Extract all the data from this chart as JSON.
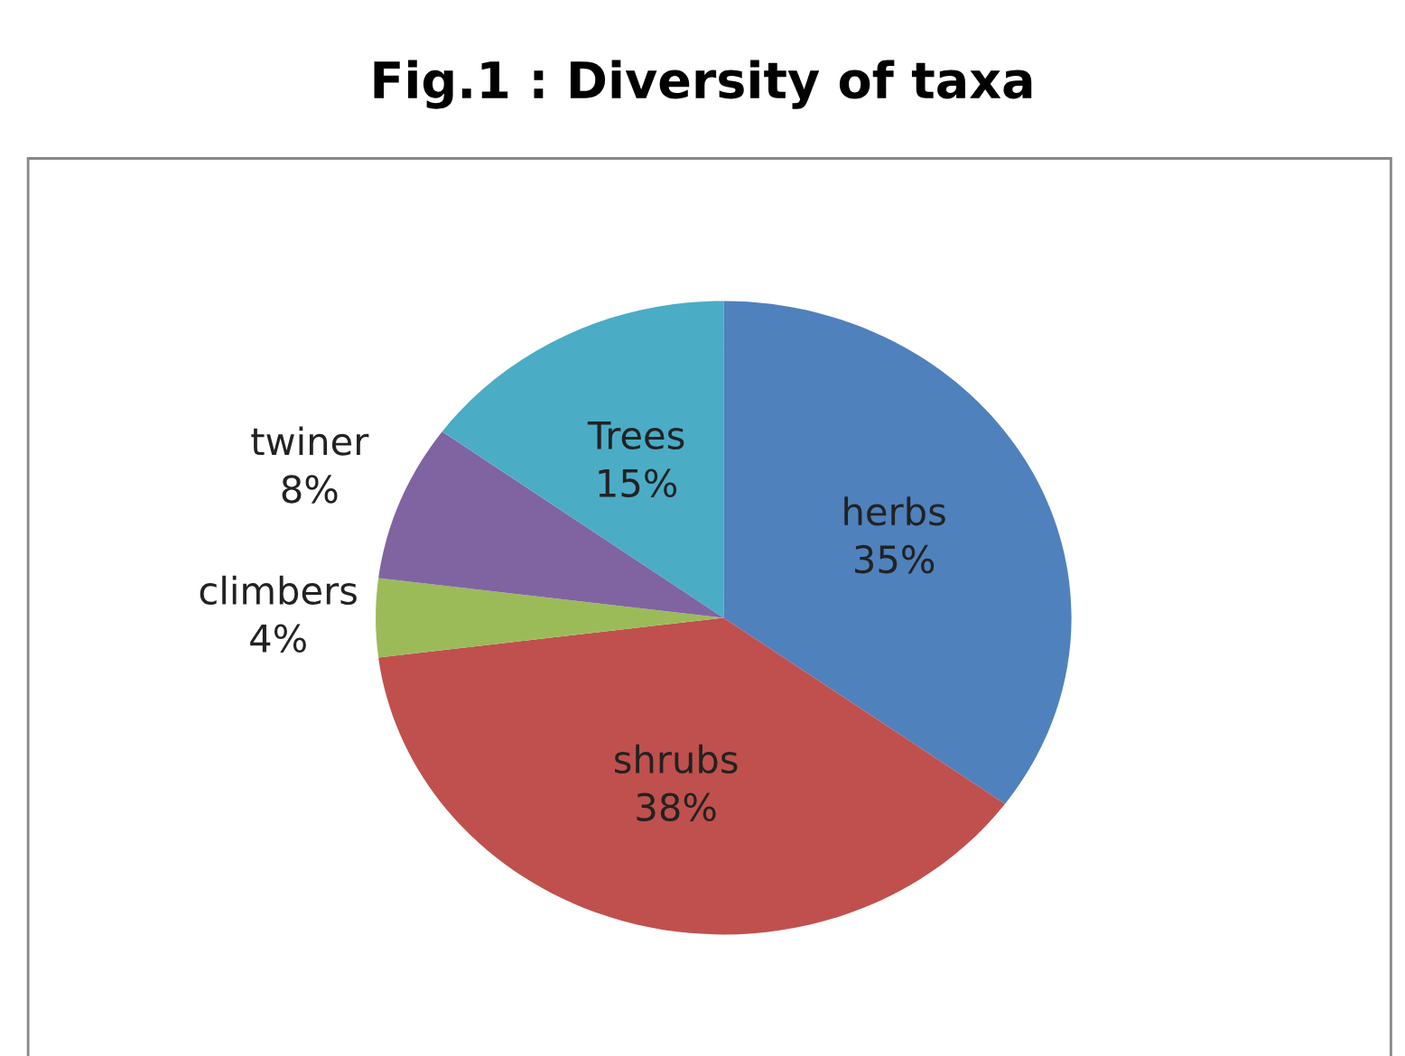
{
  "chart_data": {
    "type": "pie",
    "title": "Fig.1 : Diversity of taxa",
    "categories": [
      "herbs",
      "shrubs",
      "climbers",
      "twiner",
      "Trees"
    ],
    "values": [
      35,
      38,
      4,
      8,
      15
    ],
    "colors": [
      "#4f81bd",
      "#c0504d",
      "#9bbb59",
      "#8064a2",
      "#4bacc6"
    ],
    "value_labels": [
      "35%",
      "38%",
      "4%",
      "8%",
      "15%"
    ],
    "legend": false
  }
}
